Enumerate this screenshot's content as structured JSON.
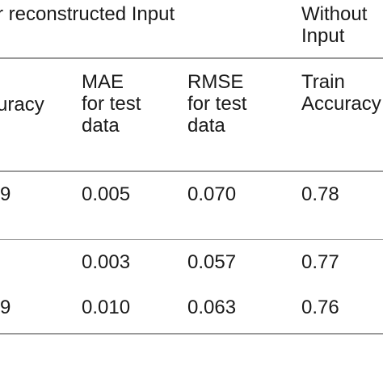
{
  "table": {
    "group_headers": {
      "left": "r reconstructed Input",
      "right_line1": "Without",
      "right_line2": "Input"
    },
    "column_headers": {
      "col0": "uracy",
      "mae": [
        "MAE",
        "for test",
        "data"
      ],
      "rmse": [
        "RMSE",
        "for test",
        "data"
      ],
      "train": [
        "Train",
        "Accuracy"
      ]
    },
    "rows": [
      {
        "col0": "9",
        "mae": "0.005",
        "rmse": "0.070",
        "train": "0.78"
      },
      {
        "col0": "",
        "mae": "0.003",
        "rmse": "0.057",
        "train": "0.77"
      },
      {
        "col0": "9",
        "mae": "0.010",
        "rmse": "0.063",
        "train": "0.76"
      }
    ]
  }
}
